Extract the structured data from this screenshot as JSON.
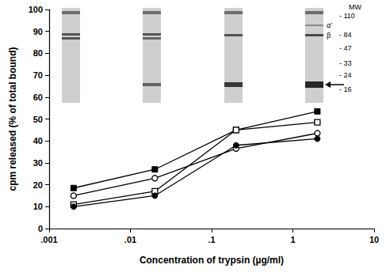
{
  "chart_data": {
    "type": "line",
    "x_label": "Concentration of trypsin (µg/ml)",
    "y_label": "cpm released (% of total bound)",
    "log": "x",
    "grid": false,
    "xlim": [
      0.001,
      10
    ],
    "xticks": [
      {
        "value": 0.001,
        "label": ".001"
      },
      {
        "value": 0.01,
        "label": ".01"
      },
      {
        "value": 0.1,
        "label": ".1"
      },
      1,
      10
    ],
    "ylim": [
      0,
      100
    ],
    "yticks": [
      0,
      10,
      20,
      30,
      40,
      50,
      60,
      70,
      80,
      90,
      100
    ],
    "x": [
      0.002,
      0.02,
      0.2,
      2
    ],
    "series": [
      {
        "color": "#000000",
        "marker": "square",
        "values": [
          18.5,
          27,
          45,
          53.5
        ]
      },
      {
        "color": "#000000",
        "marker": "open_square",
        "values": [
          11,
          17,
          45,
          48.5
        ]
      },
      {
        "color": "#000000",
        "marker": "open_circle",
        "values": [
          15,
          23,
          36.5,
          43.5
        ]
      },
      {
        "color": "#000000",
        "marker": "circle",
        "values": [
          10,
          15,
          38,
          41
        ]
      }
    ],
    "annotations": [
      "MW",
      "α'",
      "β"
    ],
    "mw_markers": [
      110,
      84,
      47,
      33,
      24,
      16
    ]
  }
}
